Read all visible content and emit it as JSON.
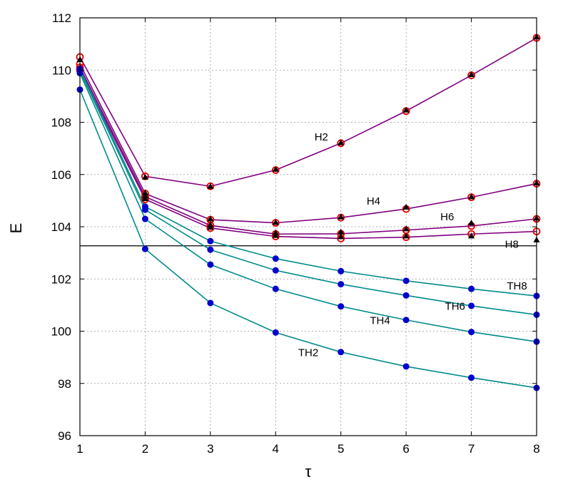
{
  "chart_data": {
    "type": "line",
    "xlabel": "τ",
    "ylabel": "E",
    "xlim": [
      1,
      8
    ],
    "ylim": [
      96,
      112
    ],
    "x_ticks": [
      1,
      2,
      3,
      4,
      5,
      6,
      7,
      8
    ],
    "y_ticks": [
      96,
      98,
      100,
      102,
      104,
      106,
      108,
      110,
      112
    ],
    "grid": true,
    "reference_line": {
      "y": 103.27
    },
    "x": [
      1,
      2,
      3,
      4,
      5,
      6,
      7,
      8
    ],
    "series": [
      {
        "name": "H2",
        "color": "#800080",
        "marker_color": "#e00000",
        "marker": "circle-open",
        "values": [
          110.5,
          105.93,
          105.55,
          106.17,
          107.2,
          108.43,
          109.8,
          111.23
        ],
        "label_at": [
          4.7,
          107.3
        ]
      },
      {
        "name": "H4",
        "color": "#800080",
        "marker_color": "#e00000",
        "marker": "circle-open",
        "values": [
          110.23,
          105.27,
          104.27,
          104.15,
          104.35,
          104.68,
          105.13,
          105.65
        ],
        "label_at": [
          5.5,
          104.85
        ]
      },
      {
        "name": "H6",
        "color": "#800080",
        "marker_color": "#e00000",
        "marker": "circle-open",
        "values": [
          110.1,
          105.15,
          104.05,
          103.72,
          103.73,
          103.87,
          104.03,
          104.3
        ],
        "label_at": [
          6.63,
          104.25
        ]
      },
      {
        "name": "H8",
        "color": "#800080",
        "marker_color": "#e00000",
        "marker": "circle-open",
        "values": [
          110.0,
          105.05,
          103.95,
          103.63,
          103.55,
          103.6,
          103.72,
          103.82
        ],
        "label_at": [
          7.62,
          103.2
        ]
      },
      {
        "name": "TH8",
        "color": "#008b8b",
        "marker_color": "#0000cc",
        "marker": "circle-filled",
        "values": [
          110.05,
          104.77,
          103.45,
          102.78,
          102.3,
          101.93,
          101.62,
          101.35
        ],
        "label_at": [
          7.7,
          101.6
        ]
      },
      {
        "name": "TH6",
        "color": "#008b8b",
        "marker_color": "#0000cc",
        "marker": "circle-filled",
        "values": [
          109.97,
          104.65,
          103.12,
          102.33,
          101.8,
          101.37,
          100.97,
          100.63
        ],
        "label_at": [
          6.75,
          100.82
        ]
      },
      {
        "name": "TH4",
        "color": "#008b8b",
        "marker_color": "#0000cc",
        "marker": "circle-filled",
        "values": [
          109.88,
          104.3,
          102.55,
          101.62,
          100.95,
          100.43,
          99.97,
          99.6
        ],
        "label_at": [
          5.6,
          100.27
        ]
      },
      {
        "name": "TH2",
        "color": "#008b8b",
        "marker_color": "#0000cc",
        "marker": "circle-filled",
        "values": [
          109.25,
          103.15,
          101.08,
          99.95,
          99.2,
          98.65,
          98.22,
          97.83
        ],
        "label_at": [
          4.5,
          99.05
        ]
      }
    ],
    "triangle_markers": {
      "color": "#000000",
      "points": [
        [
          1,
          110.4
        ],
        [
          2,
          105.9
        ],
        [
          3,
          105.55
        ],
        [
          4,
          106.2
        ],
        [
          5,
          107.22
        ],
        [
          6,
          108.47
        ],
        [
          7,
          109.83
        ],
        [
          8,
          111.27
        ],
        [
          2,
          105.3
        ],
        [
          3,
          104.3
        ],
        [
          4,
          104.17
        ],
        [
          5,
          104.38
        ],
        [
          6,
          104.75
        ],
        [
          7,
          105.15
        ],
        [
          8,
          105.68
        ],
        [
          2,
          105.18
        ],
        [
          3,
          104.08
        ],
        [
          4,
          103.77
        ],
        [
          5,
          103.8
        ],
        [
          6,
          103.92
        ],
        [
          7,
          104.15
        ],
        [
          8,
          104.33
        ],
        [
          2,
          105.08
        ],
        [
          3,
          103.98
        ],
        [
          4,
          103.67
        ],
        [
          5,
          103.62
        ],
        [
          6,
          103.65
        ],
        [
          7,
          103.65
        ],
        [
          8,
          103.5
        ]
      ]
    }
  }
}
